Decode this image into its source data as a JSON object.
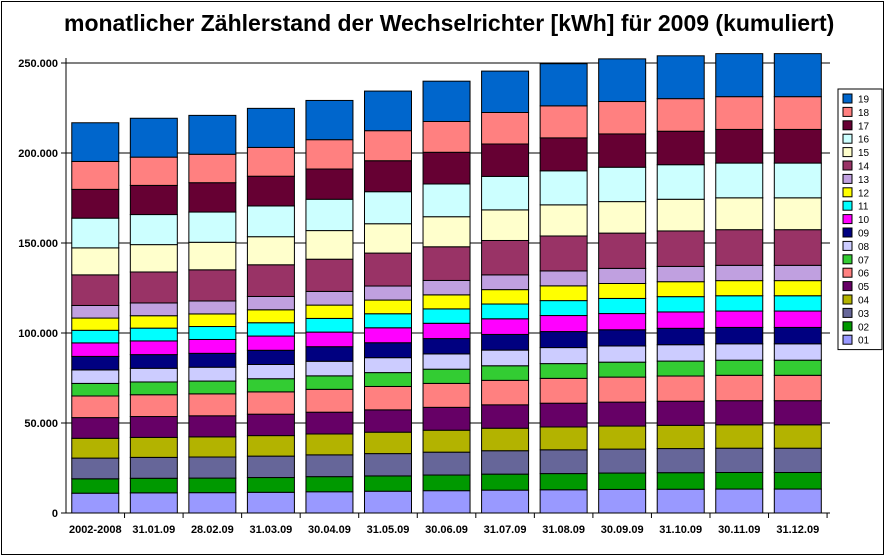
{
  "chart_data": {
    "type": "bar",
    "stacked": true,
    "title": "monatlicher Zählerstand der Wechselrichter [kWh] für 2009 (kumuliert)",
    "xlabel": "",
    "ylabel": "",
    "ylim": [
      0,
      250000
    ],
    "yticks": [
      0,
      50000,
      100000,
      150000,
      200000,
      250000
    ],
    "ytick_labels": [
      "0",
      "50.000",
      "100.000",
      "150.000",
      "200.000",
      "250.000"
    ],
    "grid": true,
    "legend_position": "right",
    "categories": [
      "2002-2008",
      "31.01.09",
      "28.02.09",
      "31.03.09",
      "30.04.09",
      "31.05.09",
      "30.06.09",
      "31.07.09",
      "31.08.09",
      "30.09.09",
      "31.10.09",
      "30.11.09",
      "31.12.09"
    ],
    "series": [
      {
        "name": "01",
        "color": "#9999ff",
        "values": [
          11000,
          11200,
          11300,
          11500,
          11800,
          12100,
          12400,
          12700,
          12900,
          13100,
          13200,
          13300,
          13300
        ]
      },
      {
        "name": "02",
        "color": "#009900",
        "values": [
          8000,
          8100,
          8100,
          8200,
          8400,
          8500,
          8700,
          8900,
          9000,
          9100,
          9200,
          9200,
          9200
        ]
      },
      {
        "name": "03",
        "color": "#666699",
        "values": [
          11500,
          11600,
          11700,
          11900,
          12100,
          12400,
          12700,
          13000,
          13200,
          13300,
          13400,
          13500,
          13500
        ]
      },
      {
        "name": "04",
        "color": "#b3b300",
        "values": [
          11000,
          11100,
          11200,
          11400,
          11600,
          11900,
          12200,
          12500,
          12700,
          12800,
          12900,
          13000,
          13000
        ]
      },
      {
        "name": "05",
        "color": "#660066",
        "values": [
          11500,
          11600,
          11700,
          11900,
          12100,
          12400,
          12700,
          13000,
          13200,
          13300,
          13400,
          13400,
          13400
        ]
      },
      {
        "name": "06",
        "color": "#ff8080",
        "values": [
          12000,
          12100,
          12200,
          12400,
          12700,
          13000,
          13300,
          13600,
          13800,
          13900,
          14000,
          14100,
          14100
        ]
      },
      {
        "name": "07",
        "color": "#33cc33",
        "values": [
          7000,
          7100,
          7100,
          7300,
          7500,
          7700,
          7900,
          8100,
          8200,
          8300,
          8300,
          8400,
          8400
        ]
      },
      {
        "name": "08",
        "color": "#ccccff",
        "values": [
          7500,
          7600,
          7700,
          7900,
          8100,
          8300,
          8500,
          8700,
          8900,
          9000,
          9100,
          9100,
          9100
        ]
      },
      {
        "name": "09",
        "color": "#000080",
        "values": [
          7500,
          7600,
          7700,
          7900,
          8100,
          8300,
          8500,
          8700,
          8900,
          9000,
          9100,
          9100,
          9100
        ]
      },
      {
        "name": "10",
        "color": "#ff00ff",
        "values": [
          7500,
          7600,
          7700,
          7900,
          8100,
          8300,
          8500,
          8700,
          8900,
          9000,
          9100,
          9100,
          9100
        ]
      },
      {
        "name": "11",
        "color": "#00ffff",
        "values": [
          7000,
          7100,
          7200,
          7400,
          7600,
          7800,
          8000,
          8200,
          8300,
          8400,
          8500,
          8500,
          8500
        ]
      },
      {
        "name": "12",
        "color": "#ffff00",
        "values": [
          6800,
          6900,
          7000,
          7200,
          7400,
          7600,
          7800,
          8000,
          8200,
          8300,
          8300,
          8400,
          8400
        ]
      },
      {
        "name": "13",
        "color": "#c0a0e0",
        "values": [
          7000,
          7100,
          7200,
          7400,
          7600,
          7800,
          8000,
          8200,
          8300,
          8400,
          8500,
          8500,
          8500
        ]
      },
      {
        "name": "14",
        "color": "#993366",
        "values": [
          17000,
          17200,
          17300,
          17600,
          17900,
          18300,
          18700,
          19100,
          19400,
          19600,
          19700,
          19800,
          19800
        ]
      },
      {
        "name": "15",
        "color": "#ffffcc",
        "values": [
          15000,
          15200,
          15300,
          15600,
          15900,
          16300,
          16700,
          17000,
          17300,
          17500,
          17600,
          17700,
          17700
        ]
      },
      {
        "name": "16",
        "color": "#ccffff",
        "values": [
          16500,
          16700,
          16800,
          17100,
          17400,
          17800,
          18200,
          18600,
          18900,
          19100,
          19200,
          19300,
          19300
        ]
      },
      {
        "name": "17",
        "color": "#660033",
        "values": [
          16000,
          16200,
          16300,
          16500,
          16800,
          17200,
          17600,
          18000,
          18300,
          18500,
          18600,
          18700,
          18700
        ]
      },
      {
        "name": "18",
        "color": "#ff8080",
        "values": [
          15500,
          15700,
          15800,
          16000,
          16300,
          16700,
          17100,
          17500,
          17800,
          18000,
          18100,
          18200,
          18200
        ]
      },
      {
        "name": "19",
        "color": "#0066cc",
        "values": [
          21500,
          21600,
          21600,
          21700,
          21800,
          22000,
          22400,
          23000,
          23400,
          23700,
          23800,
          23900,
          23900
        ]
      }
    ]
  }
}
